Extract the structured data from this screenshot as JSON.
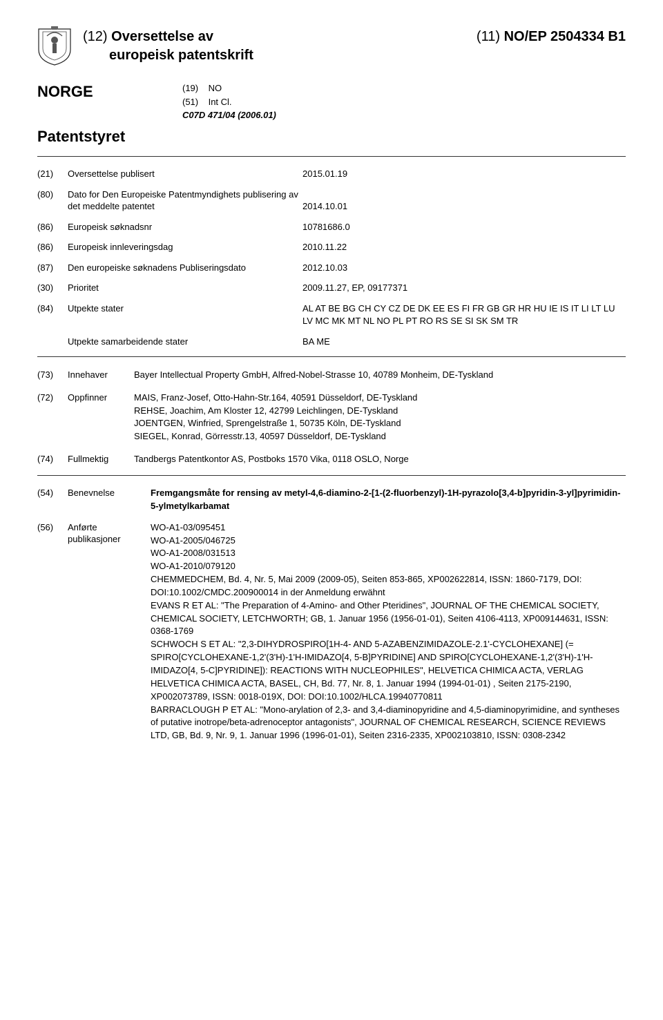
{
  "header": {
    "kind_prefix": "(12)",
    "title_line1": "Oversettelse av",
    "title_line2": "europeisk patentskrift",
    "pubno_prefix": "(11)",
    "pubno": "NO/EP 2504334",
    "kind_code": "B1"
  },
  "country": {
    "label": "NORGE",
    "line1_code": "(19)",
    "line1_val": "NO",
    "line2_code": "(51)",
    "line2_val": "Int Cl.",
    "ipc": "C07D 471/04 (2006.01)"
  },
  "authority": "Patentstyret",
  "fields": {
    "f21": {
      "code": "(21)",
      "label": "Oversettelse publisert",
      "value": "2015.01.19"
    },
    "f80": {
      "code": "(80)",
      "label": "Dato for Den Europeiske Patentmyndighets publisering av det meddelte patentet",
      "value": "2014.10.01"
    },
    "f86a": {
      "code": "(86)",
      "label": "Europeisk søknadsnr",
      "value": "10781686.0"
    },
    "f86b": {
      "code": "(86)",
      "label": "Europeisk innleveringsdag",
      "value": "2010.11.22"
    },
    "f87": {
      "code": "(87)",
      "label": "Den europeiske søknadens Publiseringsdato",
      "value": "2012.10.03"
    },
    "f30": {
      "code": "(30)",
      "label": "Prioritet",
      "value": "2009.11.27, EP, 09177371"
    },
    "f84": {
      "code": "(84)",
      "label": "Utpekte stater",
      "value": "AL AT BE BG CH CY CZ DE DK EE ES FI FR GB GR HR HU IE IS IT LI LT LU LV MC MK MT NL NO PL PT RO RS SE SI SK SM TR"
    },
    "coop": {
      "label": "Utpekte samarbeidende stater",
      "value": "BA ME"
    }
  },
  "parties": {
    "f73": {
      "code": "(73)",
      "label": "Innehaver",
      "value": "Bayer Intellectual Property GmbH, Alfred-Nobel-Strasse 10, 40789 Monheim, DE-Tyskland"
    },
    "f72": {
      "code": "(72)",
      "label": "Oppfinner",
      "lines": [
        "MAIS, Franz-Josef, Otto-Hahn-Str.164, 40591 Düsseldorf, DE-Tyskland",
        "REHSE, Joachim, Am Kloster 12, 42799 Leichlingen, DE-Tyskland",
        "JOENTGEN, Winfried, Sprengelstraße 1, 50735 Köln, DE-Tyskland",
        "SIEGEL, Konrad, Görresstr.13, 40597 Düsseldorf, DE-Tyskland"
      ]
    },
    "f74": {
      "code": "(74)",
      "label": "Fullmektig",
      "value": "Tandbergs Patentkontor AS, Postboks 1570 Vika, 0118 OSLO, Norge"
    }
  },
  "abstract": {
    "f54": {
      "code": "(54)",
      "label": "Benevnelse",
      "value": "Fremgangsmåte for rensing av metyl-4,6-diamino-2-[1-(2-fluorbenzyl)-1H-pyrazolo[3,4-b]pyridin-3-yl]pyrimidin-5-ylmetylkarbamat"
    },
    "f56": {
      "code": "(56)",
      "label": "Anførte publikasjoner",
      "lines": [
        "WO-A1-03/095451",
        "WO-A1-2005/046725",
        "WO-A1-2008/031513",
        "WO-A1-2010/079120",
        "CHEMMEDCHEM, Bd. 4, Nr. 5, Mai 2009 (2009-05), Seiten 853-865, XP002622814, ISSN: 1860-7179, DOI: DOI:10.1002/CMDC.200900014 in der Anmeldung erwähnt",
        "EVANS R ET AL: \"The Preparation of 4-Amino- and Other Pteridines\", JOURNAL OF THE CHEMICAL SOCIETY, CHEMICAL SOCIETY, LETCHWORTH; GB, 1. Januar 1956 (1956-01-01), Seiten 4106-4113, XP009144631, ISSN: 0368-1769",
        "SCHWOCH S ET AL: \"2,3-DIHYDROSPIRO[1H-4- AND 5-AZABENZIMIDAZOLE-2.1'-CYCLOHEXANE] (= SPIRO[CYCLOHEXANE-1,2'(3'H)-1'H-IMIDAZO[4, 5-B]PYRIDINE] AND SPIRO[CYCLOHEXANE-1,2'(3'H)-1'H-IMIDAZO[4, 5-C]PYRIDINE]): REACTIONS WITH NUCLEOPHILES\", HELVETICA CHIMICA ACTA, VERLAG HELVETICA CHIMICA ACTA, BASEL, CH, Bd. 77, Nr. 8, 1. Januar 1994 (1994-01-01) , Seiten 2175-2190, XP002073789, ISSN: 0018-019X, DOI: DOI:10.1002/HLCA.19940770811",
        "BARRACLOUGH P ET AL: \"Mono-arylation of 2,3- and 3,4-diaminopyridine and 4,5-diaminopyrimidine, and syntheses of putative inotrope/beta-adrenoceptor antagonists\", JOURNAL OF CHEMICAL RESEARCH, SCIENCE REVIEWS LTD, GB, Bd. 9, Nr. 9, 1. Januar 1996 (1996-01-01), Seiten 2316-2335, XP002103810, ISSN: 0308-2342"
      ]
    }
  }
}
